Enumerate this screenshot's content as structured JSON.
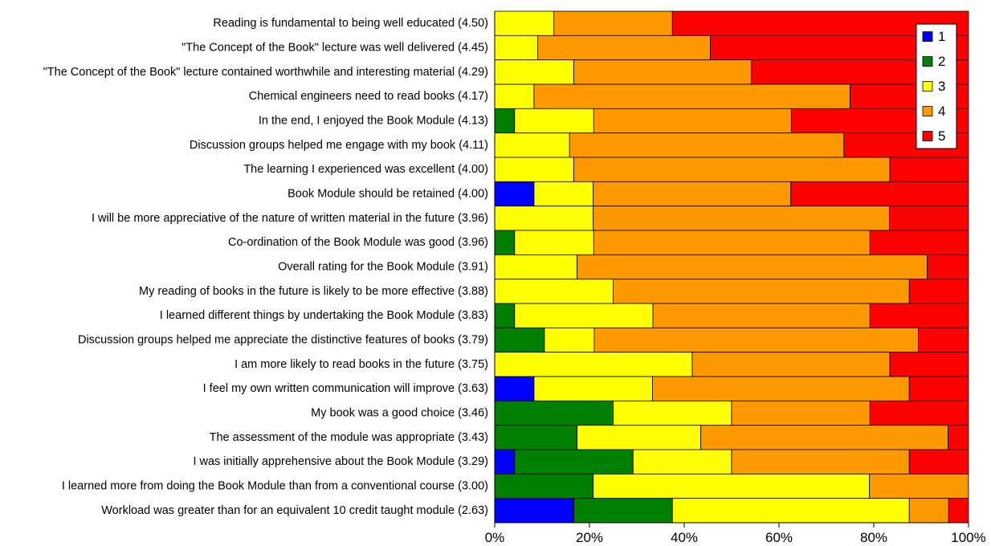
{
  "chart_data": {
    "type": "bar",
    "orientation": "horizontal",
    "stacked": true,
    "title": "",
    "xlabel": "",
    "ylabel": "",
    "xlim": [
      0,
      100
    ],
    "x_ticks": [
      "0%",
      "20%",
      "40%",
      "60%",
      "80%",
      "100%"
    ],
    "grid": false,
    "legend_position": "top-right",
    "categories": [
      "Reading is fundamental to being well educated (4.50)",
      "\"The Concept of the Book\" lecture was well delivered (4.45)",
      "\"The Concept of the Book\" lecture contained worthwhile and interesting material (4.29)",
      "Chemical engineers need to read books (4.17)",
      "In the end, I enjoyed the Book Module (4.13)",
      "Discussion groups helped me engage with my book (4.11)",
      "The learning I experienced was excellent (4.00)",
      "Book Module should be retained (4.00)",
      "I will be more appreciative of the nature of written material in the future (3.96)",
      "Co-ordination of the Book Module was good (3.96)",
      "Overall rating for the Book Module (3.91)",
      "My reading of books in the future is likely to be more effective (3.88)",
      "I learned different things by undertaking the Book Module (3.83)",
      "Discussion groups helped me appreciate the distinctive features of books (3.79)",
      "I am more likely to read books in the future (3.75)",
      "I feel my own written communication will improve (3.63)",
      "My book was a good choice (3.46)",
      "The assessment of the module was appropriate (3.43)",
      "I was initially apprehensive about the Book Module (3.29)",
      "I learned more from doing the Book Module than from a conventional course (3.00)",
      "Workload was greater than for an equivalent 10 credit taught module (2.63)"
    ],
    "series": [
      {
        "name": "1",
        "color": "#0000ff",
        "values": [
          0,
          0,
          0,
          0,
          0,
          0,
          0,
          8.3,
          0,
          0,
          0,
          0,
          0,
          0,
          0,
          8.3,
          0,
          0,
          4.2,
          0,
          16.7
        ]
      },
      {
        "name": "2",
        "color": "#008000",
        "values": [
          0,
          0,
          0,
          0,
          4.2,
          0,
          0,
          0,
          0,
          4.2,
          0,
          0,
          4.2,
          10.5,
          0,
          0,
          25.0,
          17.4,
          25.0,
          20.8,
          20.8
        ]
      },
      {
        "name": "3",
        "color": "#ffff00",
        "values": [
          12.5,
          9.1,
          16.7,
          8.3,
          16.7,
          15.8,
          16.7,
          12.5,
          20.8,
          16.7,
          17.4,
          25.0,
          29.2,
          10.5,
          41.7,
          25.0,
          25.0,
          26.1,
          20.8,
          58.3,
          50.0
        ]
      },
      {
        "name": "4",
        "color": "#ff9900",
        "values": [
          25.0,
          36.4,
          37.5,
          66.7,
          41.7,
          57.9,
          66.7,
          41.7,
          62.5,
          58.3,
          73.9,
          62.5,
          45.8,
          68.4,
          41.7,
          54.2,
          29.2,
          52.2,
          37.5,
          20.9,
          8.3
        ]
      },
      {
        "name": "5",
        "color": "#ff0000",
        "values": [
          62.5,
          54.5,
          45.8,
          25.0,
          37.4,
          26.3,
          16.6,
          37.5,
          16.7,
          20.8,
          8.7,
          12.5,
          20.8,
          10.6,
          16.6,
          12.5,
          20.8,
          4.3,
          12.5,
          0,
          4.2
        ]
      }
    ]
  }
}
